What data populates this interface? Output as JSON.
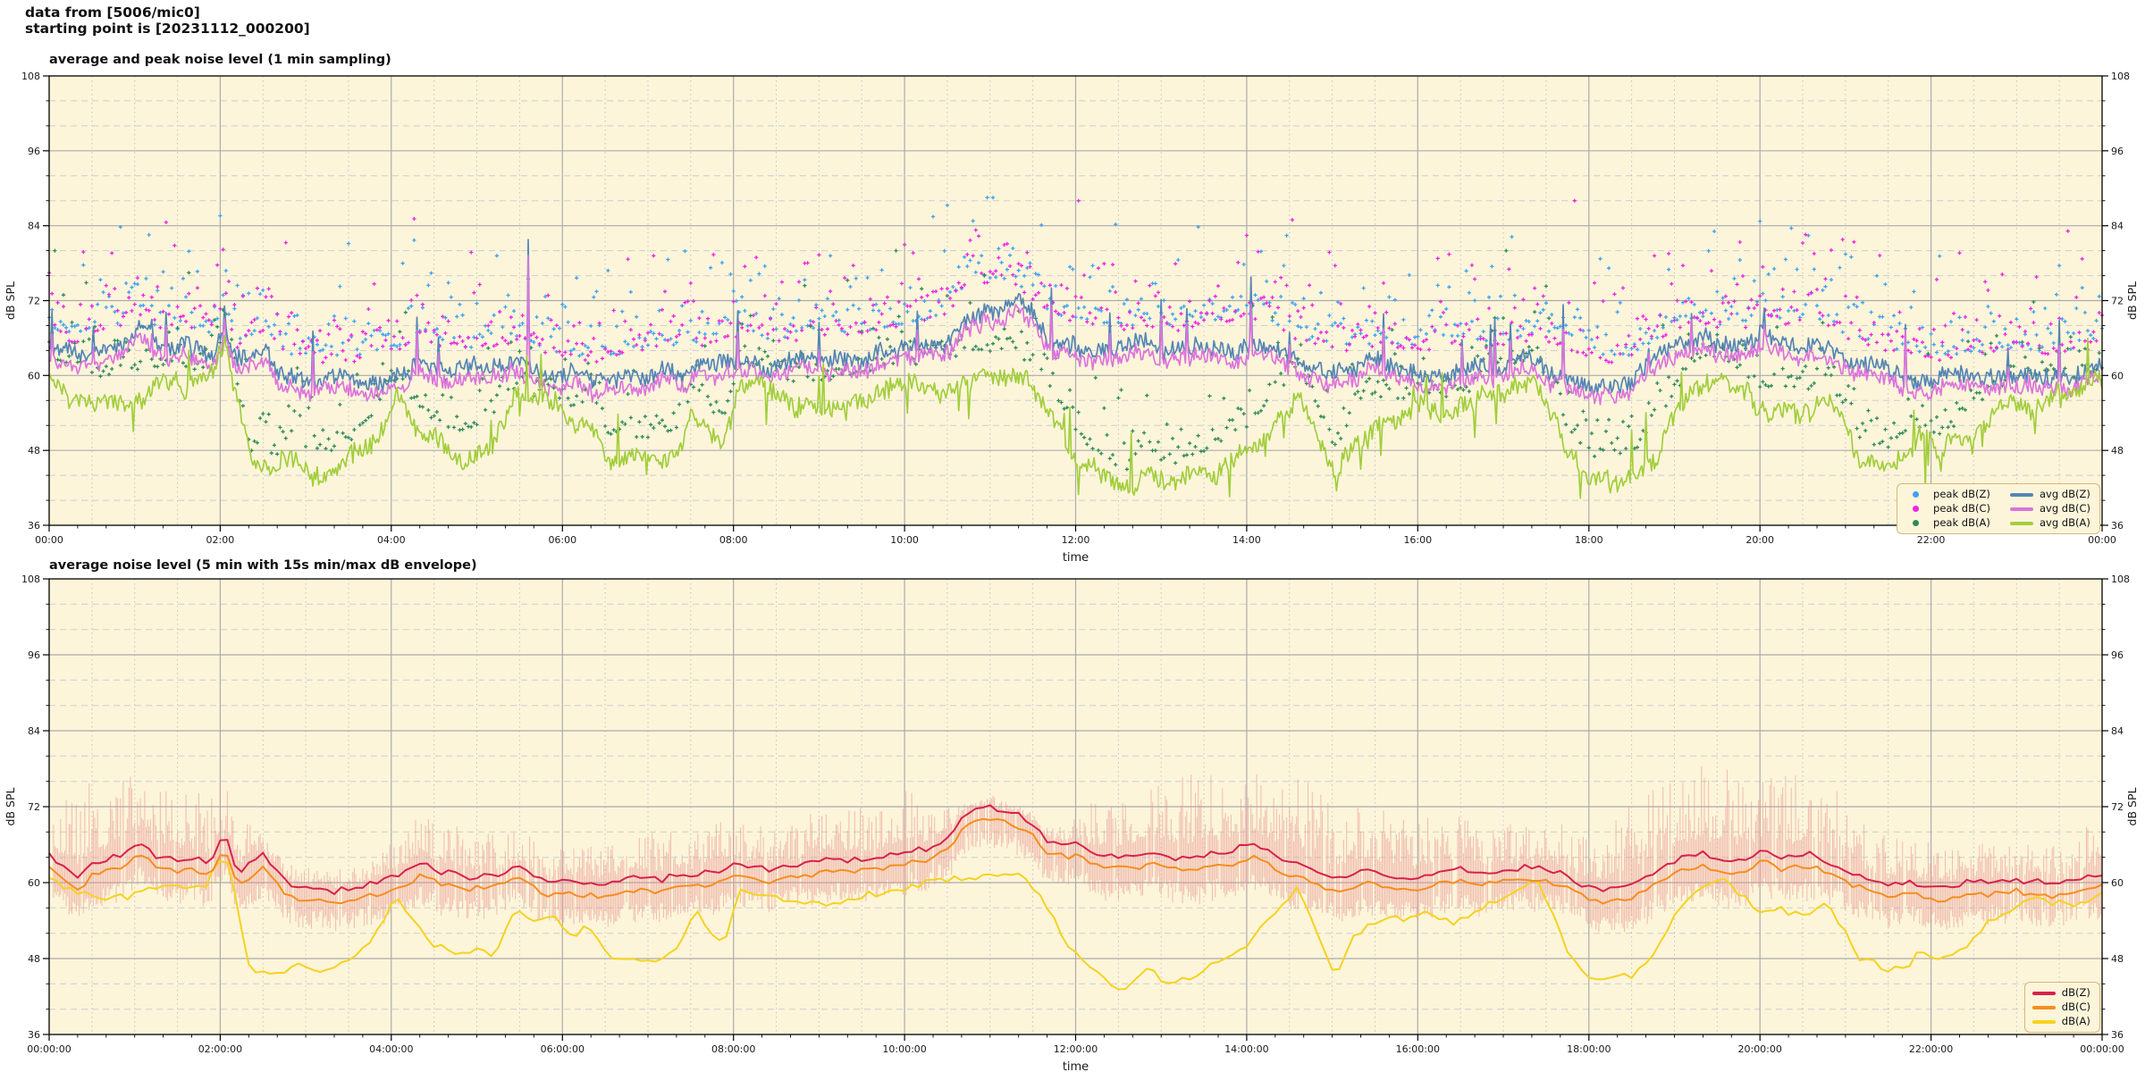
{
  "page": {
    "background": "#ffffff",
    "plot_background": "#FCF5DA"
  },
  "header": {
    "line1": "data from [5006/mic0]",
    "line2": "starting point is [20231112_000200]"
  },
  "colors": {
    "plot_bg": "#FCF5DA",
    "grid_major": "#ABABAB",
    "grid_minor_dashed": "#CDCDCD",
    "grid_minor_dotted": "#C2C2C2",
    "axis_frame": "#000000",
    "tick_text": "#1a1a1a"
  },
  "chart_data": [
    {
      "type": "line",
      "title": "average and peak noise level (1 min sampling)",
      "xlabel": "time",
      "ylabel_left": "dB SPL",
      "ylabel_right": "dB SPL",
      "ylim": [
        36,
        108
      ],
      "yticks": [
        36,
        48,
        60,
        72,
        84,
        96,
        108
      ],
      "y_minor_step_db": 4,
      "xlim_hours": [
        0,
        24
      ],
      "xtick_labels": [
        "00:00",
        "02:00",
        "04:00",
        "06:00",
        "08:00",
        "10:00",
        "12:00",
        "14:00",
        "16:00",
        "18:00",
        "20:00",
        "22:00",
        "00:00"
      ],
      "xtick_step_hours": 2,
      "x_minor_grid_min": 30,
      "x_minor_tick_min": 20,
      "grid": {
        "major": true,
        "minor": true
      },
      "sampling_minutes": 1,
      "legend": {
        "position": "lower right",
        "columns": 2,
        "entries": [
          {
            "label": "peak dB(Z)",
            "marker": "dot",
            "color": "#3FA2F0"
          },
          {
            "label": "peak dB(C)",
            "marker": "dot",
            "color": "#EF23E3"
          },
          {
            "label": "peak dB(A)",
            "marker": "dot",
            "color": "#2F8A57"
          },
          {
            "label": "avg dB(Z)",
            "marker": "line",
            "color": "#5585B5"
          },
          {
            "label": "avg dB(C)",
            "marker": "line",
            "color": "#DC74DC"
          },
          {
            "label": "avg dB(A)",
            "marker": "line",
            "color": "#A2CE3D"
          }
        ]
      },
      "series_model": {
        "base_avg_dbz_keypoints": [
          [
            0,
            64.5
          ],
          [
            0.2,
            62.5
          ],
          [
            0.35,
            61.5
          ],
          [
            0.5,
            63.5
          ],
          [
            0.8,
            64.5
          ],
          [
            1.05,
            66.5
          ],
          [
            1.3,
            63.5
          ],
          [
            1.6,
            63.5
          ],
          [
            1.9,
            62.5
          ],
          [
            2.05,
            67
          ],
          [
            2.2,
            61
          ],
          [
            2.5,
            64
          ],
          [
            2.8,
            59.5
          ],
          [
            3,
            59
          ],
          [
            3.3,
            58.5
          ],
          [
            3.6,
            59
          ],
          [
            3.9,
            60
          ],
          [
            4.15,
            61
          ],
          [
            4.35,
            63
          ],
          [
            4.6,
            61
          ],
          [
            4.9,
            60.5
          ],
          [
            5.2,
            61
          ],
          [
            5.5,
            62.5
          ],
          [
            5.8,
            60
          ],
          [
            6.1,
            59.5
          ],
          [
            6.4,
            59
          ],
          [
            6.7,
            59.5
          ],
          [
            6.9,
            60.5
          ],
          [
            7.3,
            61
          ],
          [
            7.6,
            61.5
          ],
          [
            8,
            63
          ],
          [
            8.4,
            62
          ],
          [
            8.8,
            62.5
          ],
          [
            9.2,
            63
          ],
          [
            9.6,
            63.5
          ],
          [
            10,
            64.5
          ],
          [
            10.3,
            65
          ],
          [
            10.55,
            67
          ],
          [
            10.7,
            71
          ],
          [
            11,
            71.5
          ],
          [
            11.3,
            71
          ],
          [
            11.5,
            69
          ],
          [
            11.7,
            66
          ],
          [
            12,
            65.5
          ],
          [
            12.3,
            64.5
          ],
          [
            12.6,
            64
          ],
          [
            12.9,
            64.5
          ],
          [
            13.2,
            64
          ],
          [
            13.5,
            64.5
          ],
          [
            13.8,
            65
          ],
          [
            14.05,
            66
          ],
          [
            14.35,
            63.5
          ],
          [
            14.65,
            62
          ],
          [
            15,
            60.5
          ],
          [
            15.3,
            61
          ],
          [
            15.6,
            61.5
          ],
          [
            15.9,
            60.5
          ],
          [
            16.2,
            61
          ],
          [
            16.5,
            61.5
          ],
          [
            16.8,
            61
          ],
          [
            17.1,
            62
          ],
          [
            17.4,
            62.5
          ],
          [
            17.7,
            61.5
          ],
          [
            17.95,
            59.5
          ],
          [
            18.2,
            58.8
          ],
          [
            18.5,
            59.3
          ],
          [
            18.8,
            62
          ],
          [
            19.1,
            64.5
          ],
          [
            19.35,
            65
          ],
          [
            19.6,
            64
          ],
          [
            19.9,
            64.5
          ],
          [
            20.05,
            66
          ],
          [
            20.3,
            64.5
          ],
          [
            20.6,
            65.5
          ],
          [
            20.9,
            63.5
          ],
          [
            21.2,
            61.5
          ],
          [
            21.5,
            60.5
          ],
          [
            21.8,
            60
          ],
          [
            22.1,
            59
          ],
          [
            22.4,
            59.5
          ],
          [
            22.7,
            60
          ],
          [
            23,
            60.5
          ],
          [
            23.4,
            60
          ],
          [
            23.7,
            60.5
          ],
          [
            24,
            61.5
          ]
        ],
        "avg_dbc_offset": -1.7,
        "base_avg_dba_keypoints": [
          [
            0,
            60
          ],
          [
            0.3,
            58
          ],
          [
            0.6,
            56.5
          ],
          [
            1,
            57.5
          ],
          [
            1.4,
            58.5
          ],
          [
            1.8,
            57.5
          ],
          [
            2.05,
            63
          ],
          [
            2.2,
            55
          ],
          [
            2.35,
            44.5
          ],
          [
            2.6,
            43.5
          ],
          [
            2.9,
            45.5
          ],
          [
            3.2,
            44
          ],
          [
            3.5,
            46
          ],
          [
            3.8,
            50
          ],
          [
            4.05,
            56
          ],
          [
            4.3,
            52
          ],
          [
            4.5,
            49
          ],
          [
            4.8,
            48
          ],
          [
            5.05,
            49
          ],
          [
            5.2,
            48
          ],
          [
            5.45,
            55
          ],
          [
            5.65,
            53
          ],
          [
            5.9,
            54
          ],
          [
            6.1,
            51
          ],
          [
            6.3,
            53
          ],
          [
            6.55,
            47
          ],
          [
            6.8,
            46.5
          ],
          [
            7.1,
            47
          ],
          [
            7.35,
            48.5
          ],
          [
            7.55,
            55
          ],
          [
            7.75,
            51
          ],
          [
            7.9,
            50
          ],
          [
            8.05,
            58
          ],
          [
            8.35,
            58
          ],
          [
            8.7,
            55.5
          ],
          [
            9.1,
            56
          ],
          [
            9.5,
            57
          ],
          [
            9.9,
            58
          ],
          [
            10.3,
            59
          ],
          [
            10.7,
            60
          ],
          [
            11.1,
            60.5
          ],
          [
            11.45,
            59
          ],
          [
            11.7,
            54
          ],
          [
            11.9,
            49
          ],
          [
            12.1,
            46
          ],
          [
            12.35,
            43
          ],
          [
            12.6,
            41.5
          ],
          [
            12.85,
            45
          ],
          [
            13.1,
            42
          ],
          [
            13.4,
            44
          ],
          [
            13.7,
            46
          ],
          [
            14,
            48.5
          ],
          [
            14.3,
            53
          ],
          [
            14.6,
            58
          ],
          [
            14.85,
            50
          ],
          [
            15.05,
            44.5
          ],
          [
            15.25,
            51
          ],
          [
            15.5,
            53
          ],
          [
            15.8,
            53
          ],
          [
            16.1,
            54
          ],
          [
            16.4,
            52.5
          ],
          [
            16.7,
            55
          ],
          [
            16.95,
            56.5
          ],
          [
            17.2,
            58
          ],
          [
            17.35,
            60
          ],
          [
            17.55,
            55
          ],
          [
            17.75,
            48
          ],
          [
            17.95,
            44
          ],
          [
            18.2,
            43.5
          ],
          [
            18.5,
            44
          ],
          [
            18.7,
            47
          ],
          [
            19,
            54
          ],
          [
            19.3,
            59
          ],
          [
            19.55,
            60
          ],
          [
            19.8,
            57
          ],
          [
            20,
            54.5
          ],
          [
            20.2,
            55
          ],
          [
            20.5,
            54
          ],
          [
            20.75,
            56
          ],
          [
            20.95,
            52
          ],
          [
            21.15,
            46.5
          ],
          [
            21.45,
            45
          ],
          [
            21.7,
            46
          ],
          [
            21.9,
            49
          ],
          [
            22.1,
            47
          ],
          [
            22.4,
            50
          ],
          [
            22.7,
            54
          ],
          [
            23,
            56
          ],
          [
            23.3,
            57
          ],
          [
            23.7,
            56
          ],
          [
            24,
            58
          ]
        ],
        "spikes_db": [
          [
            2.05,
            4
          ],
          [
            4.3,
            8
          ],
          [
            4.55,
            6
          ],
          [
            5.6,
            13
          ],
          [
            8.05,
            8
          ],
          [
            9.0,
            5
          ],
          [
            10.15,
            5
          ],
          [
            12.4,
            6
          ],
          [
            13.3,
            6
          ],
          [
            14.05,
            9
          ],
          [
            15.6,
            8
          ],
          [
            16.9,
            7
          ],
          [
            17.7,
            11
          ],
          [
            19.2,
            6
          ],
          [
            20.05,
            4
          ],
          [
            21.7,
            10
          ],
          [
            22.9,
            5
          ],
          [
            23.5,
            9
          ]
        ],
        "noise": {
          "seed": 42,
          "scatter_seed": 99,
          "jitter_z": 2.6,
          "jitter_c": 2.4,
          "jitter_a": 2.8
        },
        "peak_offset_db": {
          "z": 2.8,
          "c": 2.2,
          "a": 2.2
        },
        "peak_max_db": {
          "z": 88.5,
          "c": 88,
          "a": 80
        }
      }
    },
    {
      "type": "line",
      "title": "average noise level (5 min with 15s min/max dB envelope)",
      "xlabel": "time",
      "ylabel_left": "dB SPL",
      "ylabel_right": "dB SPL",
      "ylim": [
        36,
        108
      ],
      "yticks": [
        36,
        48,
        60,
        72,
        84,
        96,
        108
      ],
      "y_minor_step_db": 4,
      "xlim_hours": [
        0,
        24
      ],
      "xtick_labels": [
        "00:00:00",
        "02:00:00",
        "04:00:00",
        "06:00:00",
        "08:00:00",
        "10:00:00",
        "12:00:00",
        "14:00:00",
        "16:00:00",
        "18:00:00",
        "20:00:00",
        "22:00:00",
        "00:00:00"
      ],
      "xtick_step_hours": 2,
      "x_minor_grid_min": 30,
      "x_minor_tick_min": 20,
      "grid": {
        "major": true,
        "minor": true
      },
      "sampling_minutes": 5,
      "envelope_seconds": 15,
      "envelope_color": "#E89494",
      "legend": {
        "position": "lower right",
        "columns": 1,
        "entries": [
          {
            "label": "dB(Z)",
            "marker": "line",
            "color": "#D8224C"
          },
          {
            "label": "dB(C)",
            "marker": "line",
            "color": "#F68D1E"
          },
          {
            "label": "dB(A)",
            "marker": "line",
            "color": "#F6D21F"
          }
        ]
      },
      "series_model": {
        "reuse_base_from_chart": 0,
        "dbc_offset": -1.9,
        "dba_offset": 1.0,
        "noise": {
          "seed": 7,
          "envelope_seed": 13
        },
        "envelope_max_amp_keypoints": [
          [
            0,
            11
          ],
          [
            0.5,
            12
          ],
          [
            1,
            11
          ],
          [
            1.5,
            10
          ],
          [
            2,
            9
          ],
          [
            2.3,
            6
          ],
          [
            2.6,
            3
          ],
          [
            3,
            2.5
          ],
          [
            3.5,
            2.5
          ],
          [
            4,
            6
          ],
          [
            4.5,
            7
          ],
          [
            5,
            6
          ],
          [
            5.5,
            5
          ],
          [
            6,
            5.5
          ],
          [
            6.5,
            6
          ],
          [
            7,
            6.5
          ],
          [
            7.5,
            7
          ],
          [
            8,
            7.5
          ],
          [
            8.5,
            6
          ],
          [
            9,
            7
          ],
          [
            9.5,
            9
          ],
          [
            10,
            10
          ],
          [
            10.4,
            7
          ],
          [
            10.7,
            1.5
          ],
          [
            11,
            1.2
          ],
          [
            11.5,
            1.2
          ],
          [
            11.9,
            3
          ],
          [
            12.2,
            8
          ],
          [
            12.6,
            10
          ],
          [
            13,
            13
          ],
          [
            13.5,
            14
          ],
          [
            14,
            12
          ],
          [
            14.5,
            13
          ],
          [
            15,
            12
          ],
          [
            15.5,
            10
          ],
          [
            16,
            9
          ],
          [
            16.5,
            8
          ],
          [
            17,
            7
          ],
          [
            17.5,
            7
          ],
          [
            18,
            8
          ],
          [
            18.3,
            11
          ],
          [
            18.7,
            13
          ],
          [
            19,
            12
          ],
          [
            19.5,
            14
          ],
          [
            20,
            13
          ],
          [
            20.5,
            12
          ],
          [
            21,
            11
          ],
          [
            21.3,
            8
          ],
          [
            21.7,
            6
          ],
          [
            22,
            6
          ],
          [
            22.5,
            5
          ],
          [
            23,
            5.5
          ],
          [
            23.5,
            6
          ],
          [
            24,
            8
          ]
        ],
        "envelope_min_depth_db": [
          1.5,
          4.5
        ]
      }
    }
  ]
}
